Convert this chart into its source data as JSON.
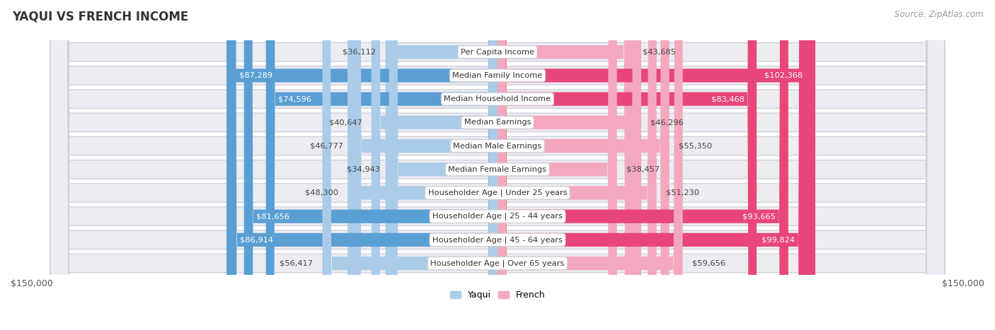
{
  "title": "YAQUI VS FRENCH INCOME",
  "source": "Source: ZipAtlas.com",
  "categories": [
    "Per Capita Income",
    "Median Family Income",
    "Median Household Income",
    "Median Earnings",
    "Median Male Earnings",
    "Median Female Earnings",
    "Householder Age | Under 25 years",
    "Householder Age | 25 - 44 years",
    "Householder Age | 45 - 64 years",
    "Householder Age | Over 65 years"
  ],
  "yaqui_values": [
    36112,
    87289,
    74596,
    40647,
    46777,
    34943,
    48300,
    81656,
    86914,
    56417
  ],
  "french_values": [
    43685,
    102368,
    83468,
    46296,
    55350,
    38457,
    51230,
    93665,
    99824,
    59656
  ],
  "yaqui_color_light": "#aacce8",
  "yaqui_color_dark": "#5a9fd4",
  "french_color_light": "#f4a8c0",
  "french_color_dark": "#e8457a",
  "bar_bg": "#ececf2",
  "bar_border": "#d0d0da",
  "max_value": 150000,
  "yaqui_threshold": 60000,
  "french_threshold": 60000,
  "legend_yaqui": "Yaqui",
  "legend_french": "French"
}
